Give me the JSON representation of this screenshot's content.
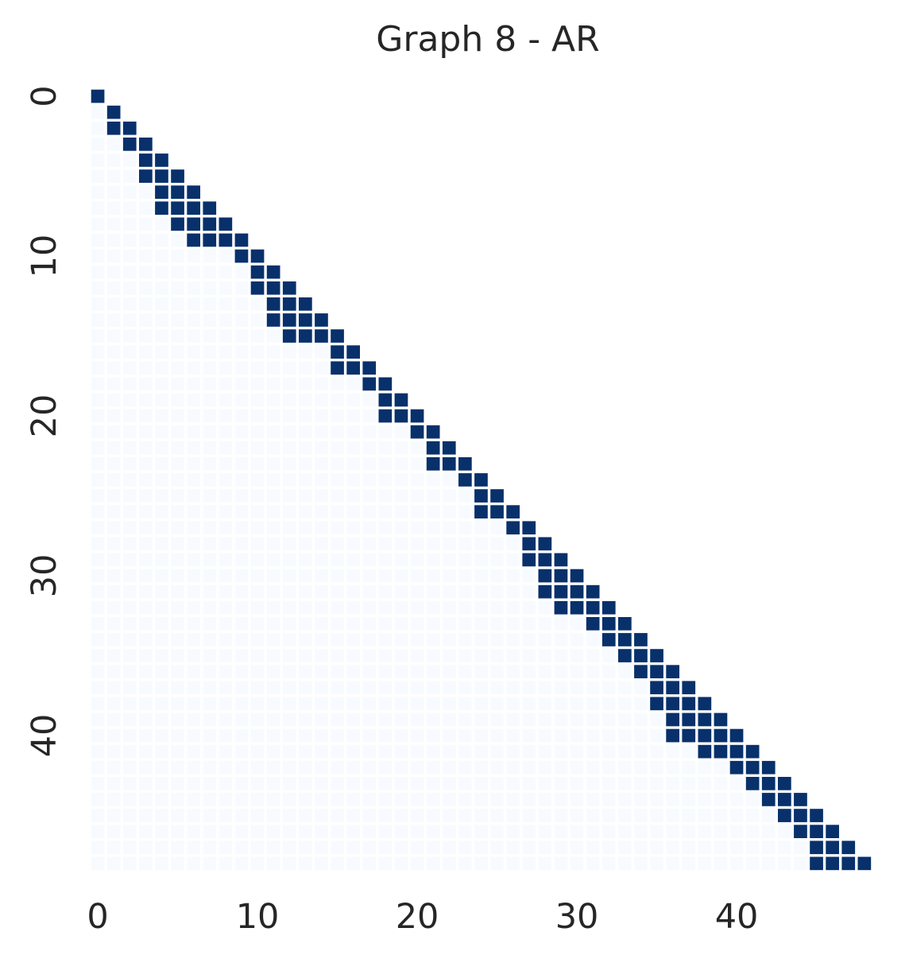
{
  "chart_data": {
    "type": "heatmap",
    "title": "Graph 8 - AR",
    "size": 49,
    "colors": {
      "filled": "#08306b",
      "empty": "#f7fbff"
    },
    "x_ticks": [
      0,
      10,
      20,
      30,
      40
    ],
    "y_ticks": [
      0,
      10,
      20,
      30,
      40
    ],
    "grid": false,
    "mask": "lower-triangle",
    "filled_cells_by_row": [
      [
        0
      ],
      [
        1
      ],
      [
        1,
        2
      ],
      [
        2,
        3
      ],
      [
        3,
        4
      ],
      [
        3,
        4,
        5
      ],
      [
        4,
        5,
        6
      ],
      [
        4,
        5,
        6,
        7
      ],
      [
        5,
        6,
        7,
        8
      ],
      [
        6,
        7,
        8,
        9
      ],
      [
        9,
        10
      ],
      [
        10,
        11
      ],
      [
        10,
        11,
        12
      ],
      [
        11,
        12,
        13
      ],
      [
        11,
        12,
        13,
        14
      ],
      [
        12,
        13,
        14,
        15
      ],
      [
        15,
        16
      ],
      [
        15,
        16,
        17
      ],
      [
        17,
        18
      ],
      [
        18,
        19
      ],
      [
        18,
        19,
        20
      ],
      [
        20,
        21
      ],
      [
        21,
        22
      ],
      [
        21,
        22,
        23
      ],
      [
        23,
        24
      ],
      [
        24,
        25
      ],
      [
        24,
        25,
        26
      ],
      [
        26,
        27
      ],
      [
        27,
        28
      ],
      [
        27,
        28,
        29
      ],
      [
        28,
        29,
        30
      ],
      [
        28,
        29,
        30,
        31
      ],
      [
        29,
        30,
        31,
        32
      ],
      [
        31,
        32,
        33
      ],
      [
        32,
        33,
        34
      ],
      [
        33,
        34,
        35
      ],
      [
        34,
        35,
        36
      ],
      [
        35,
        36,
        37
      ],
      [
        35,
        36,
        37,
        38
      ],
      [
        36,
        37,
        38,
        39
      ],
      [
        36,
        37,
        38,
        39,
        40
      ],
      [
        38,
        39,
        40,
        41
      ],
      [
        40,
        41,
        42
      ],
      [
        41,
        42,
        43
      ],
      [
        42,
        43,
        44
      ],
      [
        43,
        44,
        45
      ],
      [
        44,
        45,
        46
      ],
      [
        45,
        46,
        47
      ],
      [
        45,
        46,
        47,
        48
      ]
    ]
  }
}
